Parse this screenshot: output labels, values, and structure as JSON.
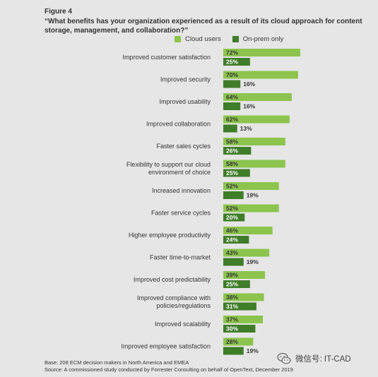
{
  "figure_label": "Figure 4",
  "question": "“What benefits has your organization experienced as a result of its cloud approach for content storage, management, and collaboration?”",
  "colors": {
    "cloud": "#8cc44e",
    "onprem": "#3f7d28",
    "background": "#e6e6e6"
  },
  "chart_data": {
    "type": "bar",
    "orientation": "horizontal",
    "categories": [
      "Improved customer satisfaction",
      "Improved security",
      "Improved usability",
      "Improved collaboration",
      "Faster sales cycles",
      "Flexibility to support our cloud environment of choice",
      "Increased innovation",
      "Faster service cycles",
      "Higher employee productivity",
      "Faster time-to-market",
      "Improved cost predictability",
      "Improved compliance with policies/regulations",
      "Improved scalability",
      "Improved employee satisfaction"
    ],
    "category_lines": [
      [
        "Improved customer satisfaction"
      ],
      [
        "Improved security"
      ],
      [
        "Improved usability"
      ],
      [
        "Improved collaboration"
      ],
      [
        "Faster sales cycles"
      ],
      [
        "Flexibility to support our cloud",
        "environment of choice"
      ],
      [
        "Increased innovation"
      ],
      [
        "Faster service cycles"
      ],
      [
        "Higher employee productivity"
      ],
      [
        "Faster time-to-market"
      ],
      [
        "Improved cost predictability"
      ],
      [
        "Improved compliance with",
        "policies/regulations"
      ],
      [
        "Improved scalability"
      ],
      [
        "Improved employee satisfaction"
      ]
    ],
    "series": [
      {
        "name": "Cloud users",
        "values": [
          72,
          70,
          64,
          62,
          58,
          58,
          52,
          52,
          46,
          43,
          39,
          38,
          37,
          28
        ]
      },
      {
        "name": "On-prem only",
        "values": [
          25,
          16,
          16,
          13,
          26,
          25,
          19,
          20,
          24,
          19,
          25,
          31,
          30,
          19
        ]
      }
    ],
    "value_suffix": "%",
    "xlim": [
      0,
      100
    ],
    "grid": false,
    "legend": "top"
  },
  "footer": {
    "base": "Base: 208 ECM decision makers in North America and EMEA",
    "source": "Source: A commissioned study conducted by Forrester Consulting on behalf of OpenText, December 2019"
  },
  "watermark": {
    "text": "微信号: IT-CAD",
    "icon": "wechat-icon"
  }
}
